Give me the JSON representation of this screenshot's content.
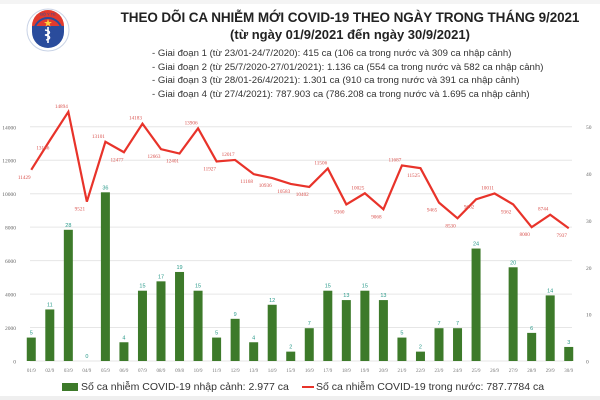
{
  "header": {
    "title": "THEO DÕI CA NHIỄM MỚI COVID-19 THEO NGÀY TRONG THÁNG 9/2021",
    "subtitle": "(từ ngày 01/9/2021 đến ngày 30/9/2021)",
    "logo_text": "BỘ Y TẾ"
  },
  "stages": [
    "- Giai đoạn 1 (từ 23/01-24/7/2020): 415 ca (106 ca trong nước và 309 ca nhập cảnh)",
    "- Giai đoạn 2 (từ 25/7/2020-27/01/2021): 1.136 ca (554 ca trong nước và 582 ca nhập cảnh)",
    "- Giai đoạn 3 (từ 28/01-26/4/2021): 1.301 ca (910 ca trong nước và 391 ca nhập cảnh)",
    "- Giai đoạn 4 (từ 27/4/2021): 787.903 ca (786.208 ca trong nước và 1.695 ca nhập cảnh)"
  ],
  "legend": {
    "imported": "Số ca nhiễm COVID-19 nhập cảnh: 2.977 ca",
    "domestic": "Số ca nhiễm COVID-19 trong nước: 787.7784 ca"
  },
  "colors": {
    "bar": "#3d7a2a",
    "line": "#e8332a",
    "bar_label": "#2a9a8a",
    "line_label": "#d9534f",
    "grid": "#e6e6e6"
  },
  "chart_data": {
    "type": "bar+line",
    "title": "THEO DÕI CA NHIỄM MỚI COVID-19 THEO NGÀY TRONG THÁNG 9/2021",
    "categories": [
      "01/9",
      "02/9",
      "03/9",
      "04/9",
      "05/9",
      "06/9",
      "07/9",
      "08/9",
      "09/8",
      "10/9",
      "11/9",
      "12/9",
      "13/9",
      "14/9",
      "15/9",
      "16/9",
      "17/9",
      "18/9",
      "19/9",
      "20/9",
      "21/9",
      "22/9",
      "23/9",
      "24/9",
      "25/9",
      "26/9",
      "27/9",
      "28/9",
      "29/9",
      "30/9"
    ],
    "series": [
      {
        "name": "Số ca nhiễm COVID-19 nhập cảnh: 2.977 ca",
        "type": "bar",
        "axis": "right",
        "values": [
          5,
          11,
          28,
          0,
          36,
          4,
          15,
          17,
          19,
          15,
          5,
          9,
          4,
          12,
          2,
          7,
          15,
          13,
          15,
          13,
          5,
          2,
          7,
          7,
          24,
          null,
          20,
          6,
          14,
          3
        ]
      },
      {
        "name": "Số ca nhiễm COVID-19 trong nước: 787.7784 ca",
        "type": "line",
        "axis": "left",
        "values": [
          11429,
          13186,
          14894,
          9521,
          13101,
          12477,
          14183,
          12663,
          12401,
          13906,
          11927,
          12017,
          11168,
          10936,
          10583,
          10402,
          11506,
          9360,
          10025,
          9068,
          11687,
          11525,
          9465,
          8530,
          9662,
          10011,
          9362,
          8000,
          8744,
          7937
        ]
      }
    ],
    "left_axis": {
      "ticks": [
        0,
        2000,
        4000,
        6000,
        8000,
        10000,
        12000,
        14000
      ],
      "ylim": [
        0,
        15600
      ]
    },
    "right_axis": {
      "ticks": [
        0,
        10,
        20,
        30,
        40,
        50
      ],
      "ylim": [
        0,
        55.7
      ]
    },
    "grid": true,
    "legend_position": "bottom"
  }
}
